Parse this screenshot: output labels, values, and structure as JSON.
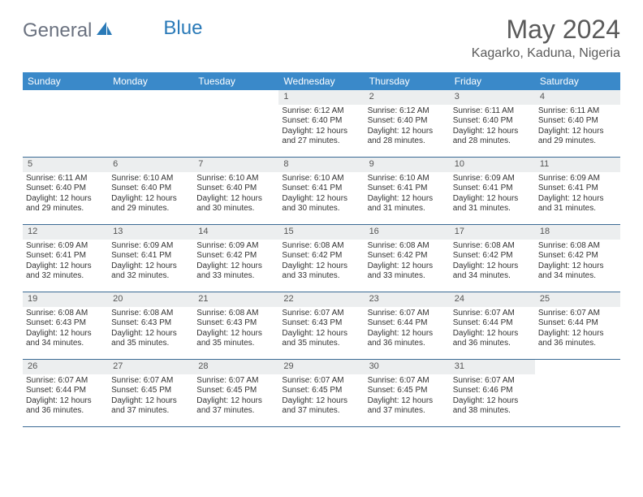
{
  "logo": {
    "part1": "General",
    "part2": "Blue"
  },
  "title": "May 2024",
  "location": "Kagarko, Kaduna, Nigeria",
  "colors": {
    "header_bg": "#3a89c9",
    "header_text": "#ffffff",
    "daynum_bg": "#eceeef",
    "border": "#3a6a94",
    "logo_gray": "#6b7280",
    "logo_blue": "#2a7ab8",
    "title_color": "#5a5a5a",
    "text": "#333333"
  },
  "dayNames": [
    "Sunday",
    "Monday",
    "Tuesday",
    "Wednesday",
    "Thursday",
    "Friday",
    "Saturday"
  ],
  "weeks": [
    [
      {
        "empty": true
      },
      {
        "empty": true
      },
      {
        "empty": true
      },
      {
        "n": "1",
        "sr": "Sunrise: 6:12 AM",
        "ss": "Sunset: 6:40 PM",
        "d1": "Daylight: 12 hours",
        "d2": "and 27 minutes."
      },
      {
        "n": "2",
        "sr": "Sunrise: 6:12 AM",
        "ss": "Sunset: 6:40 PM",
        "d1": "Daylight: 12 hours",
        "d2": "and 28 minutes."
      },
      {
        "n": "3",
        "sr": "Sunrise: 6:11 AM",
        "ss": "Sunset: 6:40 PM",
        "d1": "Daylight: 12 hours",
        "d2": "and 28 minutes."
      },
      {
        "n": "4",
        "sr": "Sunrise: 6:11 AM",
        "ss": "Sunset: 6:40 PM",
        "d1": "Daylight: 12 hours",
        "d2": "and 29 minutes."
      }
    ],
    [
      {
        "n": "5",
        "sr": "Sunrise: 6:11 AM",
        "ss": "Sunset: 6:40 PM",
        "d1": "Daylight: 12 hours",
        "d2": "and 29 minutes."
      },
      {
        "n": "6",
        "sr": "Sunrise: 6:10 AM",
        "ss": "Sunset: 6:40 PM",
        "d1": "Daylight: 12 hours",
        "d2": "and 29 minutes."
      },
      {
        "n": "7",
        "sr": "Sunrise: 6:10 AM",
        "ss": "Sunset: 6:40 PM",
        "d1": "Daylight: 12 hours",
        "d2": "and 30 minutes."
      },
      {
        "n": "8",
        "sr": "Sunrise: 6:10 AM",
        "ss": "Sunset: 6:41 PM",
        "d1": "Daylight: 12 hours",
        "d2": "and 30 minutes."
      },
      {
        "n": "9",
        "sr": "Sunrise: 6:10 AM",
        "ss": "Sunset: 6:41 PM",
        "d1": "Daylight: 12 hours",
        "d2": "and 31 minutes."
      },
      {
        "n": "10",
        "sr": "Sunrise: 6:09 AM",
        "ss": "Sunset: 6:41 PM",
        "d1": "Daylight: 12 hours",
        "d2": "and 31 minutes."
      },
      {
        "n": "11",
        "sr": "Sunrise: 6:09 AM",
        "ss": "Sunset: 6:41 PM",
        "d1": "Daylight: 12 hours",
        "d2": "and 31 minutes."
      }
    ],
    [
      {
        "n": "12",
        "sr": "Sunrise: 6:09 AM",
        "ss": "Sunset: 6:41 PM",
        "d1": "Daylight: 12 hours",
        "d2": "and 32 minutes."
      },
      {
        "n": "13",
        "sr": "Sunrise: 6:09 AM",
        "ss": "Sunset: 6:41 PM",
        "d1": "Daylight: 12 hours",
        "d2": "and 32 minutes."
      },
      {
        "n": "14",
        "sr": "Sunrise: 6:09 AM",
        "ss": "Sunset: 6:42 PM",
        "d1": "Daylight: 12 hours",
        "d2": "and 33 minutes."
      },
      {
        "n": "15",
        "sr": "Sunrise: 6:08 AM",
        "ss": "Sunset: 6:42 PM",
        "d1": "Daylight: 12 hours",
        "d2": "and 33 minutes."
      },
      {
        "n": "16",
        "sr": "Sunrise: 6:08 AM",
        "ss": "Sunset: 6:42 PM",
        "d1": "Daylight: 12 hours",
        "d2": "and 33 minutes."
      },
      {
        "n": "17",
        "sr": "Sunrise: 6:08 AM",
        "ss": "Sunset: 6:42 PM",
        "d1": "Daylight: 12 hours",
        "d2": "and 34 minutes."
      },
      {
        "n": "18",
        "sr": "Sunrise: 6:08 AM",
        "ss": "Sunset: 6:42 PM",
        "d1": "Daylight: 12 hours",
        "d2": "and 34 minutes."
      }
    ],
    [
      {
        "n": "19",
        "sr": "Sunrise: 6:08 AM",
        "ss": "Sunset: 6:43 PM",
        "d1": "Daylight: 12 hours",
        "d2": "and 34 minutes."
      },
      {
        "n": "20",
        "sr": "Sunrise: 6:08 AM",
        "ss": "Sunset: 6:43 PM",
        "d1": "Daylight: 12 hours",
        "d2": "and 35 minutes."
      },
      {
        "n": "21",
        "sr": "Sunrise: 6:08 AM",
        "ss": "Sunset: 6:43 PM",
        "d1": "Daylight: 12 hours",
        "d2": "and 35 minutes."
      },
      {
        "n": "22",
        "sr": "Sunrise: 6:07 AM",
        "ss": "Sunset: 6:43 PM",
        "d1": "Daylight: 12 hours",
        "d2": "and 35 minutes."
      },
      {
        "n": "23",
        "sr": "Sunrise: 6:07 AM",
        "ss": "Sunset: 6:44 PM",
        "d1": "Daylight: 12 hours",
        "d2": "and 36 minutes."
      },
      {
        "n": "24",
        "sr": "Sunrise: 6:07 AM",
        "ss": "Sunset: 6:44 PM",
        "d1": "Daylight: 12 hours",
        "d2": "and 36 minutes."
      },
      {
        "n": "25",
        "sr": "Sunrise: 6:07 AM",
        "ss": "Sunset: 6:44 PM",
        "d1": "Daylight: 12 hours",
        "d2": "and 36 minutes."
      }
    ],
    [
      {
        "n": "26",
        "sr": "Sunrise: 6:07 AM",
        "ss": "Sunset: 6:44 PM",
        "d1": "Daylight: 12 hours",
        "d2": "and 36 minutes."
      },
      {
        "n": "27",
        "sr": "Sunrise: 6:07 AM",
        "ss": "Sunset: 6:45 PM",
        "d1": "Daylight: 12 hours",
        "d2": "and 37 minutes."
      },
      {
        "n": "28",
        "sr": "Sunrise: 6:07 AM",
        "ss": "Sunset: 6:45 PM",
        "d1": "Daylight: 12 hours",
        "d2": "and 37 minutes."
      },
      {
        "n": "29",
        "sr": "Sunrise: 6:07 AM",
        "ss": "Sunset: 6:45 PM",
        "d1": "Daylight: 12 hours",
        "d2": "and 37 minutes."
      },
      {
        "n": "30",
        "sr": "Sunrise: 6:07 AM",
        "ss": "Sunset: 6:45 PM",
        "d1": "Daylight: 12 hours",
        "d2": "and 37 minutes."
      },
      {
        "n": "31",
        "sr": "Sunrise: 6:07 AM",
        "ss": "Sunset: 6:46 PM",
        "d1": "Daylight: 12 hours",
        "d2": "and 38 minutes."
      },
      {
        "empty": true
      }
    ]
  ]
}
